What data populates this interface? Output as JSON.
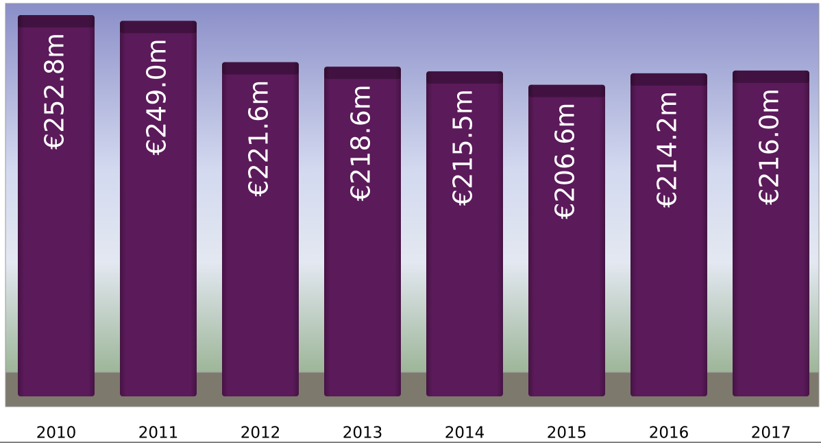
{
  "chart_data": {
    "type": "bar",
    "categories": [
      "2010",
      "2011",
      "2012",
      "2013",
      "2014",
      "2015",
      "2016",
      "2017"
    ],
    "values": [
      252.8,
      249.0,
      221.6,
      218.6,
      215.5,
      206.6,
      214.2,
      216.0
    ],
    "value_labels": [
      "€252.8m",
      "€249.0m",
      "€221.6m",
      "€218.6m",
      "€215.5m",
      "€206.6m",
      "€214.2m",
      "€216.0m"
    ],
    "color": "#5b1a5a"
  }
}
